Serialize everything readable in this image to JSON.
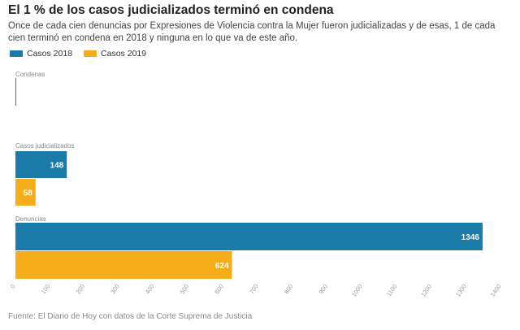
{
  "header": {
    "title": "El 1 % de los casos judicializados terminó en condena",
    "subtitle": "Once de cada cien denuncias por Expresiones de Violencia contra la Mujer fueron judicializadas y de esas, 1 de cada cien terminó en condena en 2018 y ninguna en lo que va de este año."
  },
  "legend": {
    "items": [
      {
        "label": "Casos 2018",
        "color": "#1a7aa8"
      },
      {
        "label": "Casos 2019",
        "color": "#f5ad19"
      }
    ]
  },
  "source": "Fuente: El Diario de Hoy con datos de la Corte Suprema de Justicia",
  "chart_data": {
    "type": "bar",
    "orientation": "horizontal",
    "title": "El 1 % de los casos judicializados terminó en condena",
    "categories": [
      "Condenas",
      "Casos judicializados",
      "Denuncias"
    ],
    "series": [
      {
        "name": "Casos 2018",
        "values": [
          1,
          148,
          1346
        ],
        "color": "#1a7aa8"
      },
      {
        "name": "Casos 2019",
        "values": [
          0,
          58,
          624
        ],
        "color": "#f5ad19"
      }
    ],
    "xlim": [
      0,
      1400
    ],
    "xticks": [
      0,
      100,
      200,
      300,
      400,
      500,
      600,
      700,
      800,
      900,
      1000,
      1100,
      1200,
      1300,
      1400
    ],
    "legend_position": "top-left",
    "grid": false
  }
}
